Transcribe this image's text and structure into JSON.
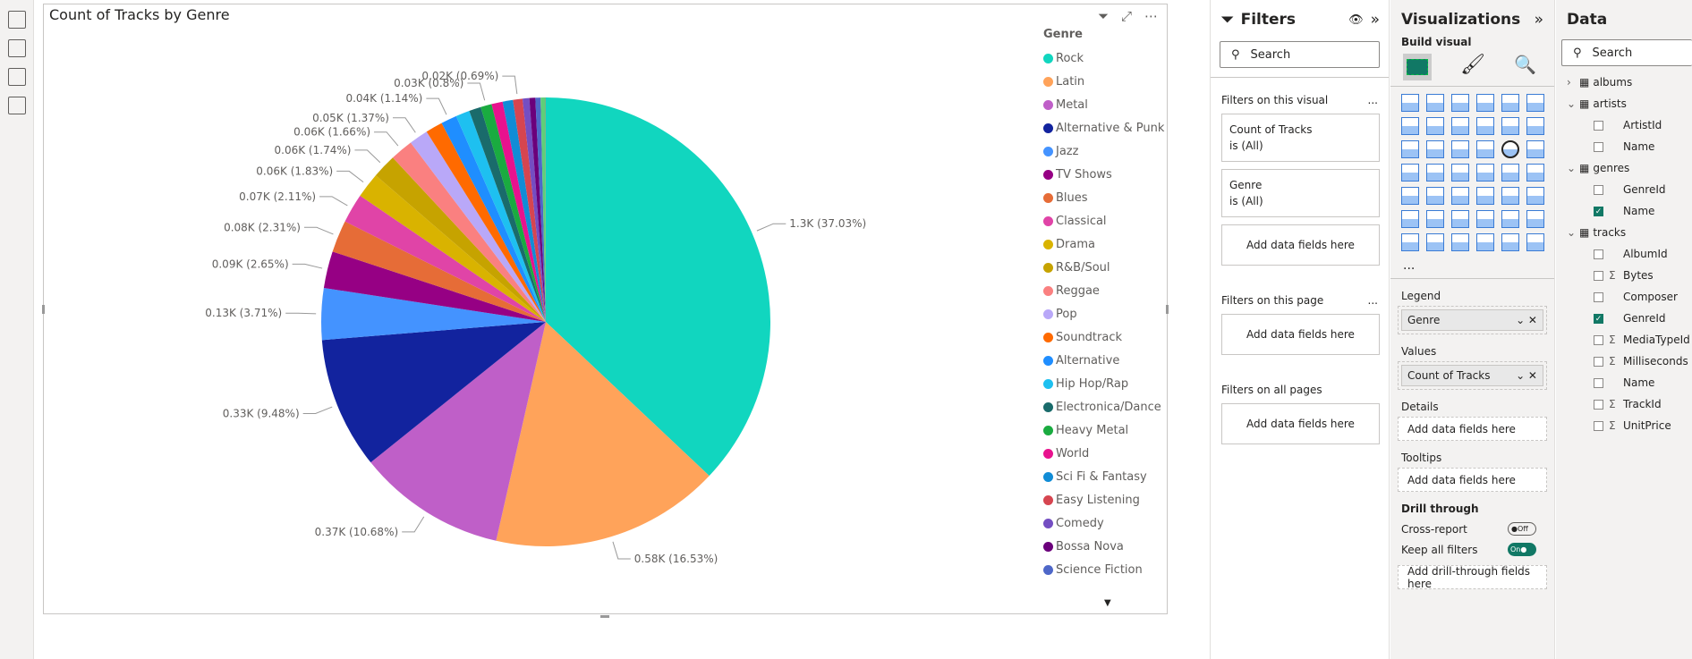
{
  "rail": {
    "icons": [
      "report-view-icon",
      "table-view-icon",
      "model-view-icon",
      "dax-query-icon"
    ]
  },
  "visual": {
    "title": "Count of Tracks by Genre",
    "icons": [
      "filter-icon",
      "focus-mode-icon",
      "more-options-icon"
    ]
  },
  "chart_data": {
    "type": "pie",
    "title": "Count of Tracks by Genre",
    "legend_title": "Genre",
    "legend_placement": "right",
    "slices": [
      {
        "name": "Rock",
        "value": 1297,
        "label": "1.3K (37.03%)",
        "color": "#11D6BF"
      },
      {
        "name": "Latin",
        "value": 579,
        "label": "0.58K (16.53%)",
        "color": "#FFA35A"
      },
      {
        "name": "Metal",
        "value": 374,
        "label": "0.37K (10.68%)",
        "color": "#BF5FC8"
      },
      {
        "name": "Alternative & Punk",
        "value": 332,
        "label": "0.33K (9.48%)",
        "color": "#12239E"
      },
      {
        "name": "Jazz",
        "value": 130,
        "label": "0.13K (3.71%)",
        "color": "#4493FF"
      },
      {
        "name": "TV Shows",
        "value": 93,
        "label": "0.09K (2.65%)",
        "color": "#960084"
      },
      {
        "name": "Blues",
        "value": 81,
        "label": "0.08K (2.31%)",
        "color": "#E66C37"
      },
      {
        "name": "Classical",
        "value": 74,
        "label": "0.07K (2.11%)",
        "color": "#E044A7"
      },
      {
        "name": "Drama",
        "value": 64,
        "label": "0.06K (1.83%)",
        "color": "#D9B300"
      },
      {
        "name": "R&B/Soul",
        "value": 61,
        "label": "0.06K (1.74%)",
        "color": "#C6A300"
      },
      {
        "name": "Reggae",
        "value": 58,
        "label": "0.06K (1.66%)",
        "color": "#FA8080"
      },
      {
        "name": "Pop",
        "value": 48,
        "label": "0.05K (1.37%)",
        "color": "#B9A8F8"
      },
      {
        "name": "Soundtrack",
        "value": 43,
        "color": "#FF6A00"
      },
      {
        "name": "Alternative",
        "value": 40,
        "label": "0.04K (1.14%)",
        "color": "#1F8EFF"
      },
      {
        "name": "Hip Hop/Rap",
        "value": 35,
        "color": "#1EC0F0"
      },
      {
        "name": "Electronica/Dance",
        "value": 30,
        "color": "#1A6B6B"
      },
      {
        "name": "Heavy Metal",
        "value": 28,
        "label": "0.03K (0.8%)",
        "color": "#1AAB40"
      },
      {
        "name": "World",
        "value": 28,
        "color": "#E8128E"
      },
      {
        "name": "Sci Fi & Fantasy",
        "value": 26,
        "color": "#118CD6"
      },
      {
        "name": "Easy Listening",
        "value": 24,
        "label": "0.02K (0.69%)",
        "color": "#D64550"
      },
      {
        "name": "Comedy",
        "value": 17,
        "color": "#744EC2"
      },
      {
        "name": "Bossa Nova",
        "value": 15,
        "color": "#6B007B"
      },
      {
        "name": "Science Fiction",
        "value": 13,
        "color": "#4E67C8"
      },
      {
        "value": 12,
        "color": "#5FCF78"
      },
      {
        "value": 1,
        "color": "#888888"
      }
    ]
  },
  "filters": {
    "title": "Filters",
    "search_placeholder": "Search",
    "on_visual": "Filters on this visual",
    "cards": [
      {
        "field": "Count of Tracks",
        "state": "is (All)"
      },
      {
        "field": "Genre",
        "state": "is (All)"
      }
    ],
    "add": "Add data fields here",
    "on_page": "Filters on this page",
    "on_all": "Filters on all pages",
    "more": "..."
  },
  "viz": {
    "title": "Visualizations",
    "build": "Build visual",
    "more": "...",
    "legend": "Legend",
    "legend_field": "Genre",
    "values": "Values",
    "values_field": "Count of Tracks",
    "details": "Details",
    "tooltips": "Tooltips",
    "add": "Add data fields here",
    "drill": "Drill through",
    "cross": "Cross-report",
    "cross_state": "Off",
    "keep": "Keep all filters",
    "keep_state": "On",
    "add_drill": "Add drill-through fields here",
    "accent": "#117865"
  },
  "data": {
    "title": "Data",
    "search_placeholder": "Search",
    "tables": [
      {
        "name": "albums",
        "expanded": false,
        "fields": []
      },
      {
        "name": "artists",
        "expanded": true,
        "fields": [
          {
            "name": "ArtistId",
            "sum": false,
            "checked": false
          },
          {
            "name": "Name",
            "sum": false,
            "checked": false
          }
        ]
      },
      {
        "name": "genres",
        "expanded": true,
        "used": true,
        "fields": [
          {
            "name": "GenreId",
            "sum": false,
            "checked": false
          },
          {
            "name": "Name",
            "sum": false,
            "checked": true
          }
        ]
      },
      {
        "name": "tracks",
        "expanded": true,
        "used": true,
        "fields": [
          {
            "name": "AlbumId",
            "sum": false,
            "checked": false
          },
          {
            "name": "Bytes",
            "sum": true,
            "checked": false
          },
          {
            "name": "Composer",
            "sum": false,
            "checked": false
          },
          {
            "name": "GenreId",
            "sum": false,
            "checked": true
          },
          {
            "name": "MediaTypeId",
            "sum": true,
            "checked": false
          },
          {
            "name": "Milliseconds",
            "sum": true,
            "checked": false
          },
          {
            "name": "Name",
            "sum": false,
            "checked": false
          },
          {
            "name": "TrackId",
            "sum": true,
            "checked": false
          },
          {
            "name": "UnitPrice",
            "sum": true,
            "checked": false
          }
        ]
      }
    ]
  }
}
